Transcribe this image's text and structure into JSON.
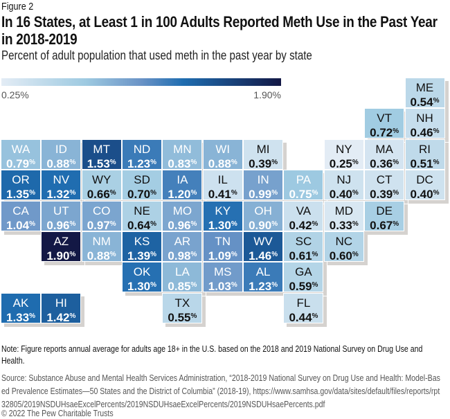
{
  "figure_label": "Figure 2",
  "chart_data": {
    "type": "tile-map",
    "title": "In 16 States, at Least 1 in 100 Adults Reported Meth Use in the Past Year in 2018-2019",
    "subtitle": "Percent of adult population that used meth in the past year by state",
    "unit": "%",
    "legend": {
      "min_label": "0.25%",
      "max_label": "1.90%",
      "min": 0.25,
      "max": 1.9,
      "color_stops": [
        [
          "#e3ecf5",
          0
        ],
        [
          "#9ecae1",
          0.3
        ],
        [
          "#6a93c6",
          0.5
        ],
        [
          "#1f6db0",
          0.65
        ],
        [
          "#131845",
          1
        ]
      ]
    },
    "states": [
      {
        "abbr": "ME",
        "value": "0.54",
        "row": 0,
        "col": 10
      },
      {
        "abbr": "VT",
        "value": "0.72",
        "row": 1,
        "col": 9
      },
      {
        "abbr": "NH",
        "value": "0.46",
        "row": 1,
        "col": 10
      },
      {
        "abbr": "WA",
        "value": "0.79",
        "row": 2,
        "col": 0
      },
      {
        "abbr": "ID",
        "value": "0.88",
        "row": 2,
        "col": 1
      },
      {
        "abbr": "MT",
        "value": "1.53",
        "row": 2,
        "col": 2
      },
      {
        "abbr": "ND",
        "value": "1.23",
        "row": 2,
        "col": 3
      },
      {
        "abbr": "MN",
        "value": "0.83",
        "row": 2,
        "col": 4
      },
      {
        "abbr": "WI",
        "value": "0.88",
        "row": 2,
        "col": 5
      },
      {
        "abbr": "MI",
        "value": "0.39",
        "row": 2,
        "col": 6
      },
      {
        "abbr": "NY",
        "value": "0.25",
        "row": 2,
        "col": 8
      },
      {
        "abbr": "MA",
        "value": "0.36",
        "row": 2,
        "col": 9
      },
      {
        "abbr": "RI",
        "value": "0.51",
        "row": 2,
        "col": 10
      },
      {
        "abbr": "OR",
        "value": "1.35",
        "row": 3,
        "col": 0
      },
      {
        "abbr": "NV",
        "value": "1.32",
        "row": 3,
        "col": 1
      },
      {
        "abbr": "WY",
        "value": "0.66",
        "row": 3,
        "col": 2
      },
      {
        "abbr": "SD",
        "value": "0.70",
        "row": 3,
        "col": 3
      },
      {
        "abbr": "IA",
        "value": "1.20",
        "row": 3,
        "col": 4
      },
      {
        "abbr": "IL",
        "value": "0.41",
        "row": 3,
        "col": 5
      },
      {
        "abbr": "IN",
        "value": "0.99",
        "row": 3,
        "col": 6
      },
      {
        "abbr": "PA",
        "value": "0.75",
        "row": 3,
        "col": 7
      },
      {
        "abbr": "NJ",
        "value": "0.40",
        "row": 3,
        "col": 8
      },
      {
        "abbr": "CT",
        "value": "0.39",
        "row": 3,
        "col": 9
      },
      {
        "abbr": "DC",
        "value": "0.40",
        "row": 3,
        "col": 10
      },
      {
        "abbr": "CA",
        "value": "1.04",
        "row": 4,
        "col": 0
      },
      {
        "abbr": "UT",
        "value": "0.96",
        "row": 4,
        "col": 1
      },
      {
        "abbr": "CO",
        "value": "0.97",
        "row": 4,
        "col": 2
      },
      {
        "abbr": "NE",
        "value": "0.64",
        "row": 4,
        "col": 3
      },
      {
        "abbr": "MO",
        "value": "0.96",
        "row": 4,
        "col": 4
      },
      {
        "abbr": "KY",
        "value": "1.30",
        "row": 4,
        "col": 5
      },
      {
        "abbr": "OH",
        "value": "0.90",
        "row": 4,
        "col": 6
      },
      {
        "abbr": "VA",
        "value": "0.42",
        "row": 4,
        "col": 7
      },
      {
        "abbr": "MD",
        "value": "0.33",
        "row": 4,
        "col": 8
      },
      {
        "abbr": "DE",
        "value": "0.67",
        "row": 4,
        "col": 9
      },
      {
        "abbr": "AZ",
        "value": "1.90",
        "row": 5,
        "col": 1
      },
      {
        "abbr": "NM",
        "value": "0.88",
        "row": 5,
        "col": 2
      },
      {
        "abbr": "KS",
        "value": "1.39",
        "row": 5,
        "col": 3
      },
      {
        "abbr": "AR",
        "value": "0.98",
        "row": 5,
        "col": 4
      },
      {
        "abbr": "TN",
        "value": "1.09",
        "row": 5,
        "col": 5
      },
      {
        "abbr": "WV",
        "value": "1.46",
        "row": 5,
        "col": 6
      },
      {
        "abbr": "SC",
        "value": "0.61",
        "row": 5,
        "col": 7
      },
      {
        "abbr": "NC",
        "value": "0.60",
        "row": 5,
        "col": 8
      },
      {
        "abbr": "OK",
        "value": "1.30",
        "row": 6,
        "col": 3
      },
      {
        "abbr": "LA",
        "value": "0.85",
        "row": 6,
        "col": 4
      },
      {
        "abbr": "MS",
        "value": "1.03",
        "row": 6,
        "col": 5
      },
      {
        "abbr": "AL",
        "value": "1.23",
        "row": 6,
        "col": 6
      },
      {
        "abbr": "GA",
        "value": "0.59",
        "row": 6,
        "col": 7
      },
      {
        "abbr": "AK",
        "value": "1.33",
        "row": 7,
        "col": 0
      },
      {
        "abbr": "HI",
        "value": "1.42",
        "row": 7,
        "col": 1
      },
      {
        "abbr": "TX",
        "value": "0.55",
        "row": 7,
        "col": 4
      },
      {
        "abbr": "FL",
        "value": "0.44",
        "row": 7,
        "col": 7
      }
    ]
  },
  "note": "Note: Figure reports annual average for adults age 18+ in the U.S. based on the 2018 and 2019 National Survey on Drug Use and Health.",
  "source": "Source: Substance Abuse and Mental Health Services Administration, “2018-2019 National Survey on Drug Use and Health: Model-Based Prevalence Estimates—50 States and the District of Columbia” (2018-19), https://www.samhsa.gov/data/sites/default/files/reports/rpt32805/2019NSDUHsaeExcelPercents/2019NSDUHsaeExcelPercents/2019NSDUHsaePercents.pdf",
  "copyright": "© 2022 The Pew Charitable Trusts"
}
